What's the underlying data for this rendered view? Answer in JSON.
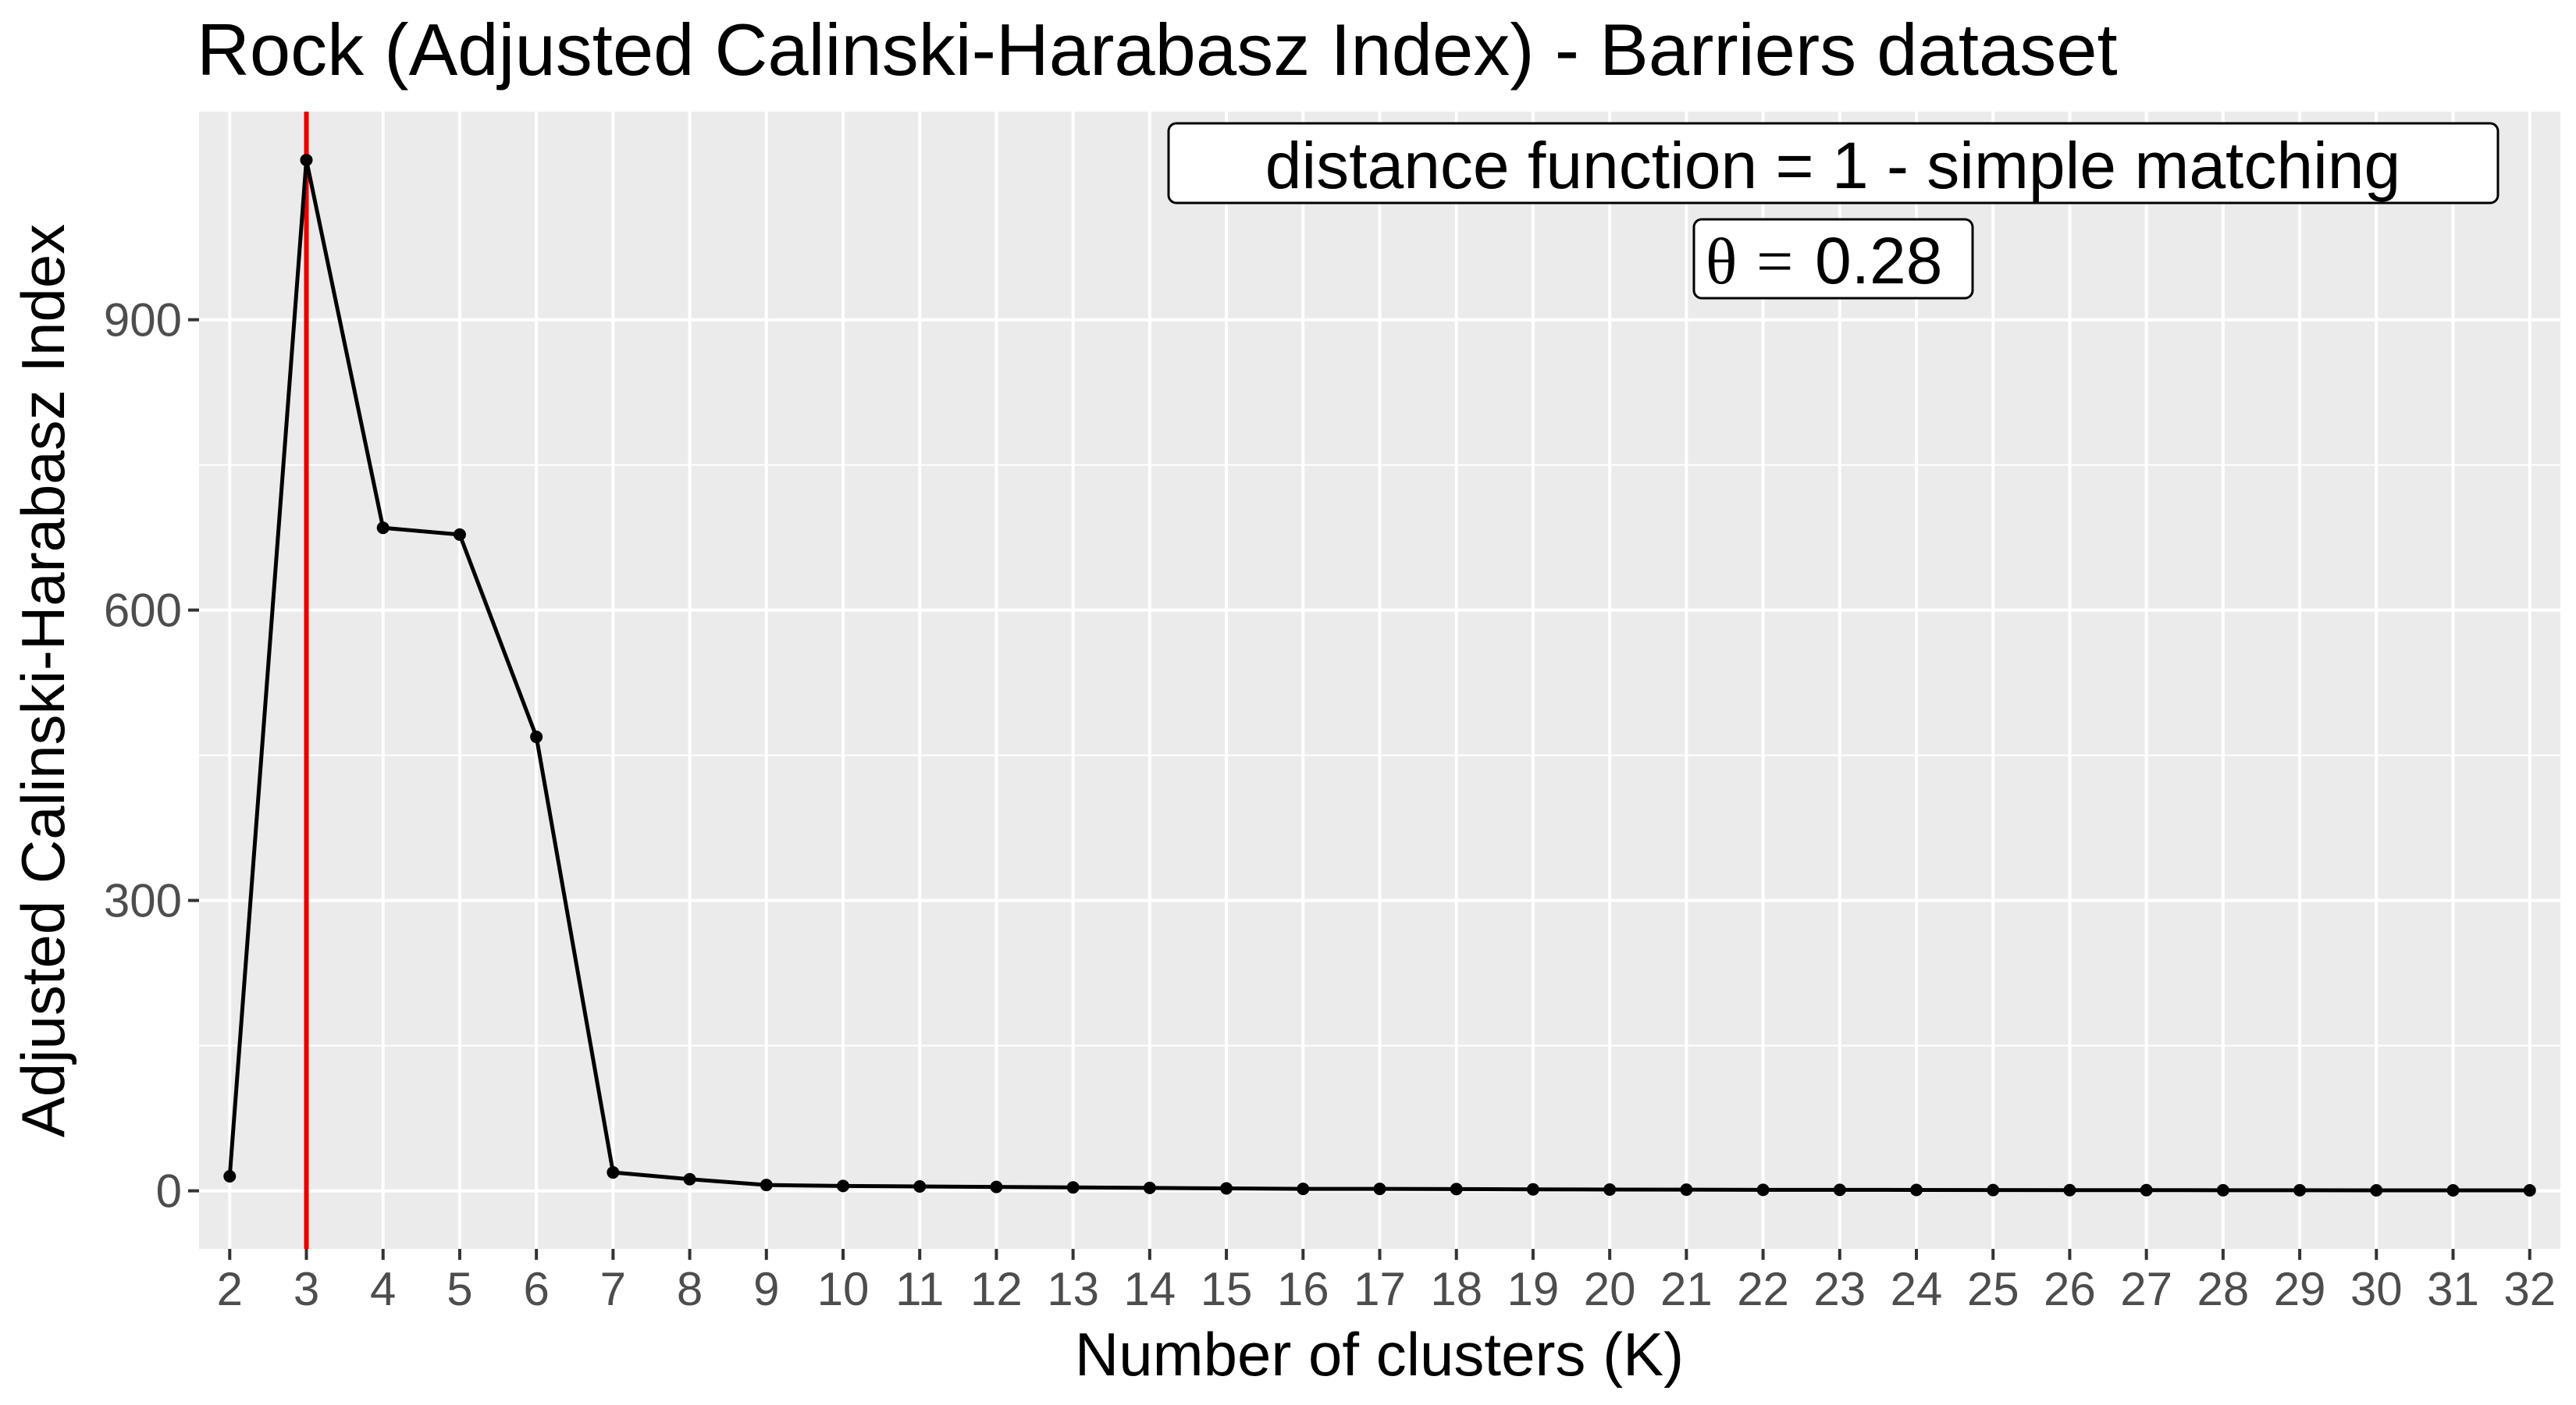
{
  "chart_data": {
    "type": "line",
    "title": "Rock (Adjusted Calinski-Harabasz Index) - Barriers dataset",
    "xlabel": "Number of clusters (K)",
    "ylabel": "Adjusted Calinski-Harabasz Index",
    "x": [
      2,
      3,
      4,
      5,
      6,
      7,
      8,
      9,
      10,
      11,
      12,
      13,
      14,
      15,
      16,
      17,
      18,
      19,
      20,
      21,
      22,
      23,
      24,
      25,
      26,
      27,
      28,
      29,
      30,
      31,
      32
    ],
    "series": [
      {
        "values": [
          15,
          1065,
          685,
          678,
          469,
          19,
          12,
          6,
          5,
          4.5,
          4,
          3.5,
          3,
          2.5,
          2,
          2,
          1.8,
          1.5,
          1.3,
          1.2,
          1,
          1,
          0.9,
          0.8,
          0.7,
          0.7,
          0.6,
          0.6,
          0.5,
          0.5,
          0.5
        ],
        "color": "#000000"
      }
    ],
    "xlim": [
      1.6,
      32.4
    ],
    "ylim": [
      -60,
      1115
    ],
    "yticks": [
      0,
      300,
      600,
      900
    ],
    "grid": true,
    "vline": {
      "x": 3,
      "color": "#e60000"
    },
    "annotation": {
      "line1": "distance function = 1 -  simple matching",
      "theta_symbol": "θ",
      "equals": "=",
      "theta_value": "0.28"
    },
    "panel_background": "#ebebeb",
    "grid_color": "#ffffff"
  }
}
